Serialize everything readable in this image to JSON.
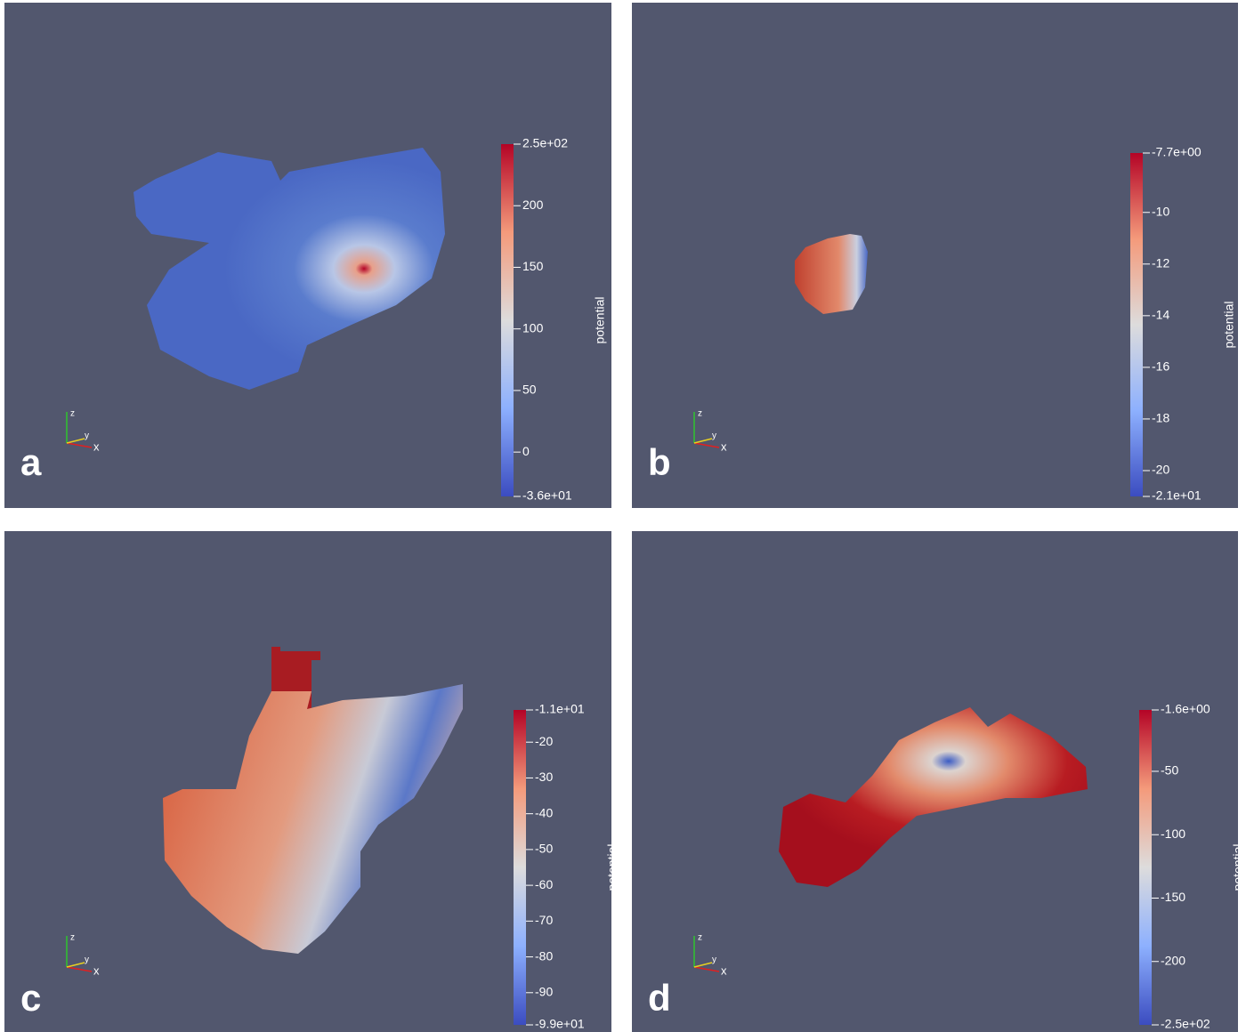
{
  "axes_triad": [
    "z",
    "y",
    "x"
  ],
  "panels": [
    {
      "label": "a",
      "colorbar": {
        "title": "potential",
        "range": [
          -36,
          250
        ],
        "ticks": [
          {
            "value": 250,
            "label": "2.5e+02"
          },
          200,
          150,
          100,
          50,
          0,
          {
            "value": -36,
            "label": "-3.6e+01"
          }
        ]
      }
    },
    {
      "label": "b",
      "colorbar": {
        "title": "potential",
        "range": [
          -21,
          -7.7
        ],
        "ticks": [
          {
            "value": -7.7,
            "label": "-7.7e+00"
          },
          -10,
          -12,
          -14,
          -16,
          -18,
          -20,
          {
            "value": -21,
            "label": "-2.1e+01"
          }
        ]
      }
    },
    {
      "label": "c",
      "colorbar": {
        "title": "potential",
        "range": [
          -99,
          -11
        ],
        "ticks": [
          {
            "value": -11,
            "label": "-1.1e+01"
          },
          -20,
          -30,
          -40,
          -50,
          -60,
          -70,
          -80,
          -90,
          {
            "value": -99,
            "label": "-9.9e+01"
          }
        ]
      }
    },
    {
      "label": "d",
      "colorbar": {
        "title": "potential",
        "range": [
          -250,
          -1.6
        ],
        "ticks": [
          {
            "value": -1.6,
            "label": "-1.6e+00"
          },
          -50,
          -100,
          -150,
          -200,
          {
            "value": -250,
            "label": "-2.5e+02"
          }
        ]
      }
    }
  ]
}
